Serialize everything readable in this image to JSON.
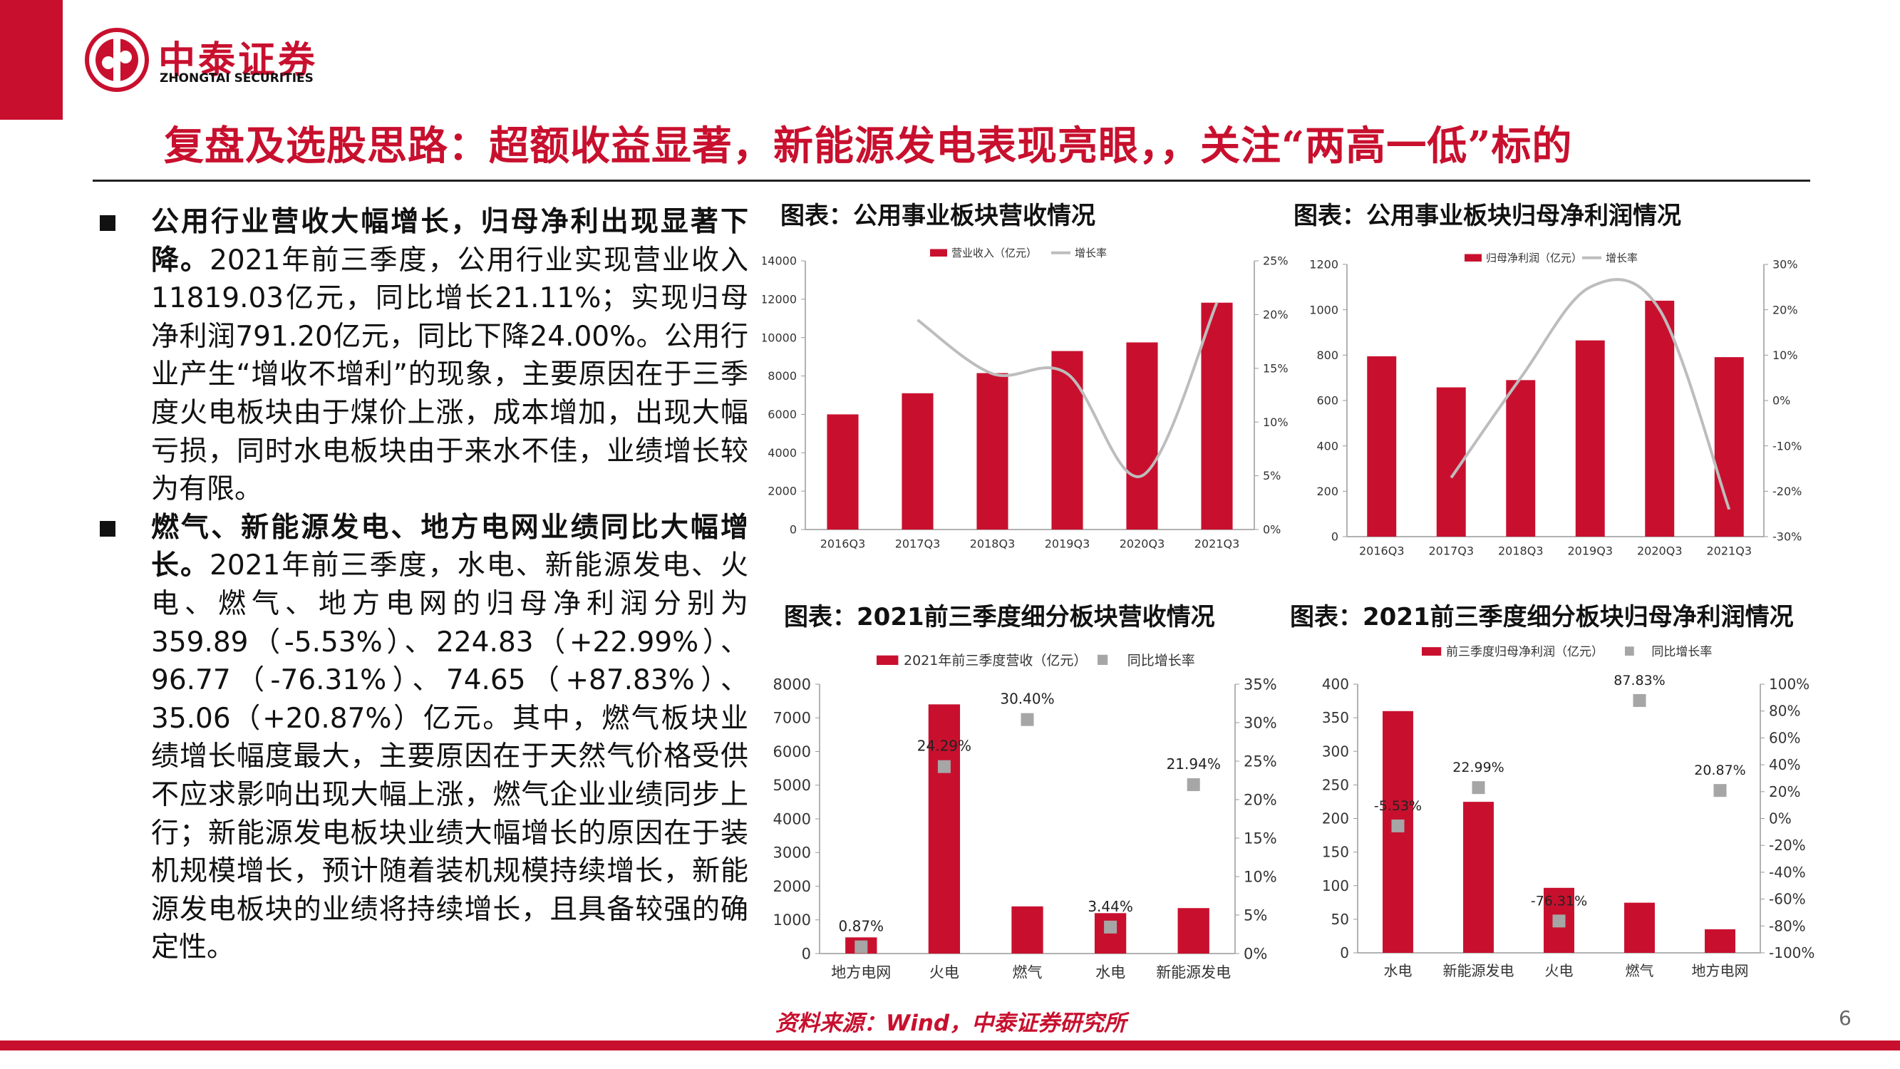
{
  "brand": {
    "name_cn": "中泰证券",
    "name_en": "ZHONGTAI SECURITIES",
    "color": "#c8102e"
  },
  "headline": "复盘及选股思路：超额收益显著，新能源发电表现亮眼，，关注“两高一低”标的",
  "bullets": [
    {
      "head": "公用行业营收大幅增长，归母净利出现显著下降。",
      "body": "2021年前三季度，公用行业实现营业收入11819.03亿元，同比增长21.11%；实现归母净利润791.20亿元，同比下降24.00%。公用行业产生“增收不增利”的现象，主要原因在于三季度火电板块由于煤价上涨，成本增加，出现大幅亏损，同时水电板块由于来水不佳，业绩增长较为有限。"
    },
    {
      "head": "燃气、新能源发电、地方电网业绩同比大幅增长。",
      "body": "2021年前三季度，水电、新能源发电、火电、燃气、地方电网的归母净利润分别为359.89（-5.53%）、224.83（+22.99%）、96.77（-76.31%）、74.65（+87.83%）、35.06（+20.87%）亿元。其中，燃气板块业绩增长幅度最大，主要原因在于天然气价格受供不应求影响出现大幅上涨，燃气企业业绩同步上行；新能源发电板块业绩大幅增长的原因在于装机规模增长，预计随着装机规模持续增长，新能源发电板块的业绩将持续增长，且具备较强的确定性。"
    }
  ],
  "chart_titles": [
    "图表：公用事业板块营收情况",
    "图表：公用事业板块归母净利润情况",
    "图表：2021前三季度细分板块营收情况",
    "图表：2021前三季度细分板块归母净利润情况"
  ],
  "source": "资料来源：Wind，中泰证券研究所",
  "page_number": "6",
  "chart_data": [
    {
      "type": "bar",
      "combo": "bar+line",
      "categories": [
        "2016Q3",
        "2017Q3",
        "2018Q3",
        "2019Q3",
        "2020Q3",
        "2021Q3"
      ],
      "series": [
        {
          "name": "营业收入（亿元）",
          "kind": "bar",
          "axis": "left",
          "color": "#c8102e",
          "values": [
            6000,
            7100,
            8150,
            9300,
            9750,
            11819.03
          ]
        },
        {
          "name": "增长率",
          "kind": "line",
          "axis": "right",
          "color": "#bdbdbd",
          "values": [
            null,
            19.5,
            14.5,
            14.5,
            5.0,
            21.11
          ]
        }
      ],
      "ylim": [
        0,
        14000
      ],
      "yticks": [
        0,
        2000,
        4000,
        6000,
        8000,
        10000,
        12000,
        14000
      ],
      "y2lim": [
        0,
        25
      ],
      "y2ticks": [
        "0%",
        "5%",
        "10%",
        "15%",
        "20%",
        "25%"
      ],
      "legend": "top"
    },
    {
      "type": "bar",
      "combo": "bar+line",
      "categories": [
        "2016Q3",
        "2017Q3",
        "2018Q3",
        "2019Q3",
        "2020Q3",
        "2021Q3"
      ],
      "series": [
        {
          "name": "归母净利润（亿元）",
          "kind": "bar",
          "axis": "left",
          "color": "#c8102e",
          "values": [
            795,
            658,
            690,
            865,
            1040,
            791.2
          ]
        },
        {
          "name": "增长率",
          "kind": "line",
          "axis": "right",
          "color": "#bdbdbd",
          "values": [
            null,
            -17,
            5,
            25,
            20,
            -24
          ]
        }
      ],
      "ylim": [
        0,
        1200
      ],
      "yticks": [
        0,
        200,
        400,
        600,
        800,
        1000,
        1200
      ],
      "y2lim": [
        -30,
        30
      ],
      "y2ticks": [
        "-30%",
        "-20%",
        "-10%",
        "0%",
        "10%",
        "20%",
        "30%"
      ],
      "legend": "top"
    },
    {
      "type": "bar",
      "combo": "bar+scatter",
      "categories": [
        "地方电网",
        "火电",
        "燃气",
        "水电",
        "新能源发电"
      ],
      "series": [
        {
          "name": "2021年前三季度营收（亿元）",
          "kind": "bar",
          "axis": "left",
          "color": "#c8102e",
          "values": [
            480,
            7400,
            1400,
            1200,
            1350
          ]
        },
        {
          "name": "同比增长率",
          "kind": "marker",
          "axis": "right",
          "color": "#a6a6a6",
          "values": [
            0.87,
            24.29,
            30.4,
            3.44,
            21.94
          ],
          "labels": [
            "0.87%",
            "24.29%",
            "30.40%",
            "3.44%",
            "21.94%"
          ]
        }
      ],
      "ylim": [
        0,
        8000
      ],
      "yticks": [
        0,
        1000,
        2000,
        3000,
        4000,
        5000,
        6000,
        7000,
        8000
      ],
      "y2lim": [
        0,
        35
      ],
      "y2ticks": [
        "0%",
        "5%",
        "10%",
        "15%",
        "20%",
        "25%",
        "30%",
        "35%"
      ],
      "legend": "top"
    },
    {
      "type": "bar",
      "combo": "bar+scatter",
      "categories": [
        "水电",
        "新能源发电",
        "火电",
        "燃气",
        "地方电网"
      ],
      "series": [
        {
          "name": "前三季度归母净利润（亿元）",
          "kind": "bar",
          "axis": "left",
          "color": "#c8102e",
          "values": [
            359.89,
            224.83,
            96.77,
            74.65,
            35.06
          ]
        },
        {
          "name": "同比增长率",
          "kind": "marker",
          "axis": "right",
          "color": "#a6a6a6",
          "values": [
            -5.53,
            22.99,
            -76.31,
            87.83,
            20.87
          ],
          "labels": [
            "-5.53%",
            "22.99%",
            "-76.31%",
            "87.83%",
            "20.87%"
          ]
        }
      ],
      "ylim": [
        0,
        400
      ],
      "yticks": [
        0,
        50,
        100,
        150,
        200,
        250,
        300,
        350,
        400
      ],
      "y2lim": [
        -100,
        100
      ],
      "y2ticks": [
        "-100%",
        "-80%",
        "-60%",
        "-40%",
        "-20%",
        "0%",
        "20%",
        "40%",
        "60%",
        "80%",
        "100%"
      ],
      "legend": "top"
    }
  ]
}
